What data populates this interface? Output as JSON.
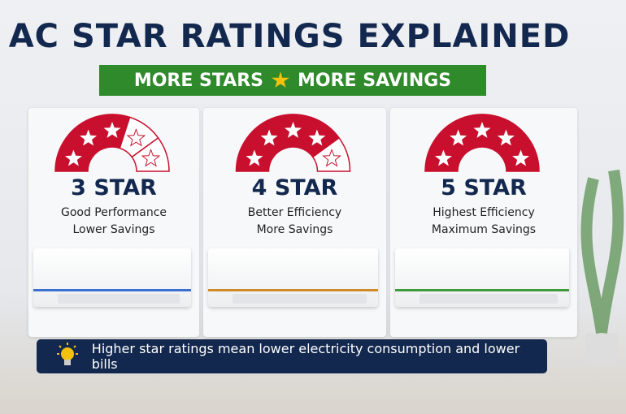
{
  "header": {
    "title": "AC STAR RATINGS EXPLAINED",
    "banner_left": "MORE STARS",
    "banner_right": "MORE SAVINGS"
  },
  "cards": [
    {
      "rating": "3 STAR",
      "line1": "Good Performance",
      "line2": "Lower Savings"
    },
    {
      "rating": "4 STAR",
      "line1": "Better Efficiency",
      "line2": "More Savings"
    },
    {
      "rating": "5 STAR",
      "line1": "Highest Efficiency",
      "line2": "Maximum Savings"
    }
  ],
  "footer": {
    "text": "Higher star ratings mean lower electricity consumption and lower bills"
  }
}
